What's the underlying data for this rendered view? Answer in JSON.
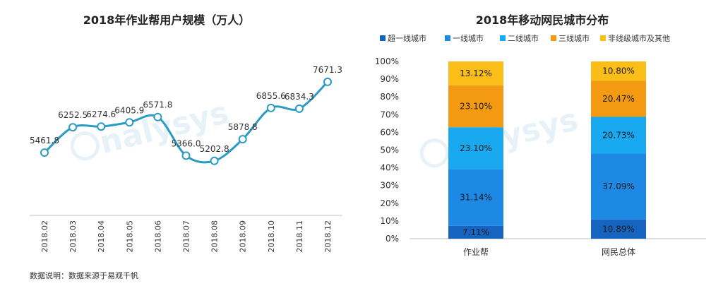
{
  "colors": {
    "line": "#2a9bc2",
    "super_tier1": "#1565c0",
    "tier1": "#1e88e5",
    "tier2": "#19a9f0",
    "tier3": "#f39a12",
    "lower": "#fbbd18"
  },
  "footnote": "数据说明：数据来源于易观千帆",
  "chart_data": [
    {
      "type": "line",
      "title": "2018年作业帮用户规模（万人）",
      "categories": [
        "2018.02",
        "2018.03",
        "2018.04",
        "2018.05",
        "2018.06",
        "2018.07",
        "2018.08",
        "2018.09",
        "2018.10",
        "2018.11",
        "2018.12"
      ],
      "values": [
        5461.8,
        6252.5,
        6274.6,
        6405.9,
        6571.8,
        5366.0,
        5202.8,
        5878.8,
        6855.6,
        6834.3,
        7671.3
      ],
      "value_labels": [
        "5461.8",
        "6252.5",
        "6274.6",
        "6405.9",
        "6571.8",
        "5366.0",
        "5202.8",
        "5878.8",
        "6855.6",
        "6834.3",
        "7671.3"
      ],
      "ylim": [
        3500,
        8000
      ]
    },
    {
      "type": "bar",
      "stacked": true,
      "title": "2018年移动网民城市分布",
      "categories": [
        "作业帮",
        "网民总体"
      ],
      "yticks": [
        "0%",
        "10%",
        "20%",
        "30%",
        "40%",
        "50%",
        "60%",
        "70%",
        "80%",
        "90%",
        "100%"
      ],
      "legend": [
        "超一线城市",
        "一线城市",
        "二线城市",
        "三线城市",
        "非线级城市及其他"
      ],
      "series": [
        {
          "name": "超一线城市",
          "values": [
            7.11,
            10.89
          ],
          "labels": [
            "7.11%",
            "10.89%"
          ]
        },
        {
          "name": "一线城市",
          "values": [
            31.14,
            37.09
          ],
          "labels": [
            "31.14%",
            "37.09%"
          ]
        },
        {
          "name": "二线城市",
          "values": [
            23.1,
            20.73
          ],
          "labels": [
            "23.10%",
            "20.73%"
          ]
        },
        {
          "name": "三线城市",
          "values": [
            23.1,
            20.47
          ],
          "labels": [
            "23.10%",
            "20.47%"
          ]
        },
        {
          "name": "非线级城市及其他",
          "values": [
            13.12,
            10.8
          ],
          "labels": [
            "13.12%",
            "10.80%"
          ]
        }
      ],
      "ylim": [
        0,
        100
      ]
    }
  ]
}
